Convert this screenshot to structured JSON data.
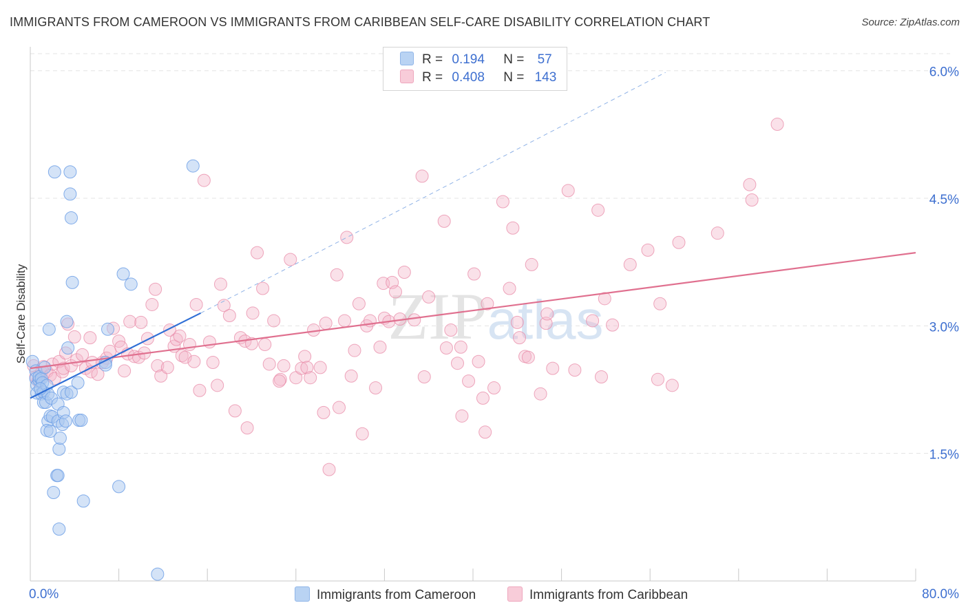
{
  "title": "IMMIGRANTS FROM CAMEROON VS IMMIGRANTS FROM CARIBBEAN SELF-CARE DISABILITY CORRELATION CHART",
  "source": "Source: ZipAtlas.com",
  "watermark": "ZIPatlas",
  "legend": {
    "rows": [
      {
        "r_label": "R =",
        "r_value": "0.194",
        "n_label": "N =",
        "n_value": "57",
        "color": "#a9c8f0"
      },
      {
        "r_label": "R =",
        "r_value": "0.408",
        "n_label": "N =",
        "n_value": "143",
        "color": "#f4b8cb"
      }
    ]
  },
  "bottom_legend": [
    {
      "label": "Immigrants from Cameroon",
      "color": "#a9c8f0"
    },
    {
      "label": "Immigrants from Caribbean",
      "color": "#f4b8cb"
    }
  ],
  "chart_data": {
    "type": "scatter",
    "title": "IMMIGRANTS FROM CAMEROON VS IMMIGRANTS FROM CARIBBEAN SELF-CARE DISABILITY CORRELATION CHART",
    "xlabel": "",
    "ylabel": "Self-Care Disability",
    "xlim": [
      0,
      80
    ],
    "ylim": [
      0,
      6.2
    ],
    "x_tick_labels": [
      "0.0%",
      "80.0%"
    ],
    "y_ticks": [
      1.5,
      3.0,
      4.5,
      6.0
    ],
    "y_tick_labels": [
      "1.5%",
      "3.0%",
      "4.5%",
      "6.0%"
    ],
    "grid": true,
    "legend_position": "top-center",
    "series": [
      {
        "name": "Immigrants from Cameroon",
        "color": "#6fa0e6",
        "fill": "#a9c8f0",
        "trend": {
          "x": [
            0,
            15.4
          ],
          "y": [
            2.15,
            3.15
          ],
          "color": "#2f6fd6"
        },
        "trend_extension": {
          "x": [
            15.4,
            57.4
          ],
          "y": [
            3.15,
            5.98
          ],
          "dashed": true
        },
        "points": [
          [
            0.2,
            2.58
          ],
          [
            0.5,
            2.47
          ],
          [
            0.5,
            2.38
          ],
          [
            0.6,
            2.3
          ],
          [
            0.6,
            2.21
          ],
          [
            0.8,
            2.36
          ],
          [
            0.8,
            2.4
          ],
          [
            1.0,
            2.38
          ],
          [
            1.0,
            2.2
          ],
          [
            1.1,
            2.33
          ],
          [
            1.2,
            2.1
          ],
          [
            1.2,
            2.22
          ],
          [
            1.3,
            2.51
          ],
          [
            1.4,
            2.1
          ],
          [
            1.5,
            2.3
          ],
          [
            1.6,
            2.2
          ],
          [
            1.6,
            1.88
          ],
          [
            1.5,
            1.77
          ],
          [
            1.7,
            2.96
          ],
          [
            1.8,
            1.94
          ],
          [
            1.8,
            1.76
          ],
          [
            1.9,
            2.15
          ],
          [
            2.0,
            1.93
          ],
          [
            2.1,
            1.04
          ],
          [
            2.4,
            1.24
          ],
          [
            2.2,
            4.81
          ],
          [
            2.5,
            1.24
          ],
          [
            2.5,
            2.08
          ],
          [
            2.5,
            1.88
          ],
          [
            2.6,
            0.61
          ],
          [
            2.6,
            1.55
          ],
          [
            2.7,
            1.68
          ],
          [
            3.0,
            2.22
          ],
          [
            2.9,
            1.84
          ],
          [
            3.0,
            1.98
          ],
          [
            3.2,
            1.88
          ],
          [
            3.3,
            3.05
          ],
          [
            3.3,
            2.2
          ],
          [
            3.4,
            2.74
          ],
          [
            3.6,
            4.81
          ],
          [
            3.6,
            4.55
          ],
          [
            3.7,
            4.27
          ],
          [
            3.7,
            2.22
          ],
          [
            3.8,
            3.51
          ],
          [
            4.3,
            2.33
          ],
          [
            4.4,
            1.89
          ],
          [
            4.6,
            1.89
          ],
          [
            4.8,
            0.94
          ],
          [
            6.8,
            2.57
          ],
          [
            6.8,
            2.54
          ],
          [
            7.0,
            2.96
          ],
          [
            8.0,
            1.11
          ],
          [
            8.4,
            3.61
          ],
          [
            9.1,
            3.49
          ],
          [
            11.5,
            0.08
          ],
          [
            14.7,
            4.88
          ],
          [
            0.9,
            2.26
          ]
        ]
      },
      {
        "name": "Immigrants from Caribbean",
        "color": "#e889a7",
        "fill": "#f4b8cb",
        "trend": {
          "x": [
            0,
            80
          ],
          "y": [
            2.5,
            3.86
          ],
          "color": "#e0708f"
        },
        "points": [
          [
            0.3,
            2.53
          ],
          [
            0.5,
            2.4
          ],
          [
            0.7,
            2.35
          ],
          [
            1.0,
            2.45
          ],
          [
            1.2,
            2.52
          ],
          [
            1.5,
            2.46
          ],
          [
            1.8,
            2.42
          ],
          [
            2.0,
            2.55
          ],
          [
            2.2,
            2.38
          ],
          [
            2.6,
            2.58
          ],
          [
            2.9,
            2.46
          ],
          [
            3.0,
            2.5
          ],
          [
            3.2,
            2.68
          ],
          [
            3.4,
            3.02
          ],
          [
            3.7,
            2.53
          ],
          [
            4.0,
            2.87
          ],
          [
            4.2,
            2.6
          ],
          [
            4.7,
            2.66
          ],
          [
            5.0,
            2.5
          ],
          [
            5.4,
            2.86
          ],
          [
            5.5,
            2.46
          ],
          [
            5.6,
            2.57
          ],
          [
            6.1,
            2.43
          ],
          [
            6.5,
            2.57
          ],
          [
            6.9,
            2.62
          ],
          [
            7.2,
            2.7
          ],
          [
            7.5,
            2.97
          ],
          [
            8.0,
            2.82
          ],
          [
            8.2,
            2.75
          ],
          [
            8.5,
            2.47
          ],
          [
            8.8,
            2.67
          ],
          [
            9.0,
            3.05
          ],
          [
            9.4,
            2.64
          ],
          [
            9.8,
            2.63
          ],
          [
            10.0,
            3.04
          ],
          [
            10.3,
            2.68
          ],
          [
            10.6,
            2.85
          ],
          [
            11.0,
            3.25
          ],
          [
            11.3,
            3.43
          ],
          [
            11.5,
            2.53
          ],
          [
            11.8,
            2.41
          ],
          [
            12.4,
            2.51
          ],
          [
            12.6,
            2.95
          ],
          [
            13.0,
            2.76
          ],
          [
            13.2,
            2.84
          ],
          [
            13.5,
            2.88
          ],
          [
            13.7,
            2.65
          ],
          [
            14.0,
            2.63
          ],
          [
            14.4,
            2.78
          ],
          [
            14.8,
            2.58
          ],
          [
            15.0,
            3.25
          ],
          [
            15.3,
            2.24
          ],
          [
            15.7,
            4.71
          ],
          [
            16.2,
            2.81
          ],
          [
            16.5,
            2.57
          ],
          [
            16.9,
            2.3
          ],
          [
            17.2,
            3.49
          ],
          [
            17.5,
            3.24
          ],
          [
            18.0,
            3.12
          ],
          [
            18.5,
            2.0
          ],
          [
            19.0,
            2.86
          ],
          [
            19.4,
            2.82
          ],
          [
            19.6,
            1.8
          ],
          [
            20.0,
            2.79
          ],
          [
            20.1,
            3.15
          ],
          [
            20.5,
            3.86
          ],
          [
            21.0,
            3.44
          ],
          [
            21.2,
            2.78
          ],
          [
            21.6,
            2.55
          ],
          [
            22.0,
            3.06
          ],
          [
            22.6,
            2.37
          ],
          [
            22.5,
            2.35
          ],
          [
            22.9,
            2.53
          ],
          [
            23.5,
            3.78
          ],
          [
            24.0,
            2.39
          ],
          [
            24.5,
            2.5
          ],
          [
            24.8,
            2.64
          ],
          [
            25.0,
            2.51
          ],
          [
            25.3,
            2.39
          ],
          [
            25.6,
            2.95
          ],
          [
            26.2,
            2.51
          ],
          [
            26.5,
            1.98
          ],
          [
            26.7,
            3.03
          ],
          [
            27.0,
            1.31
          ],
          [
            27.7,
            3.6
          ],
          [
            27.9,
            2.04
          ],
          [
            28.4,
            3.06
          ],
          [
            28.6,
            4.04
          ],
          [
            29.0,
            2.41
          ],
          [
            29.3,
            2.71
          ],
          [
            29.7,
            3.26
          ],
          [
            30.0,
            1.73
          ],
          [
            30.4,
            3.0
          ],
          [
            30.7,
            3.06
          ],
          [
            31.2,
            2.27
          ],
          [
            31.6,
            2.75
          ],
          [
            31.9,
            3.5
          ],
          [
            32.0,
            3.09
          ],
          [
            32.4,
            3.05
          ],
          [
            32.7,
            3.51
          ],
          [
            33.0,
            3.4
          ],
          [
            33.4,
            3.08
          ],
          [
            33.8,
            3.63
          ],
          [
            34.7,
            3.07
          ],
          [
            35.4,
            4.76
          ],
          [
            35.6,
            2.4
          ],
          [
            36.0,
            3.34
          ],
          [
            37.4,
            4.23
          ],
          [
            37.6,
            2.74
          ],
          [
            38.0,
            2.95
          ],
          [
            38.6,
            2.56
          ],
          [
            38.9,
            2.75
          ],
          [
            39.0,
            1.94
          ],
          [
            39.6,
            2.35
          ],
          [
            40.1,
            3.61
          ],
          [
            40.5,
            2.58
          ],
          [
            40.9,
            2.15
          ],
          [
            41.1,
            1.75
          ],
          [
            41.3,
            3.26
          ],
          [
            41.9,
            2.27
          ],
          [
            42.7,
            4.46
          ],
          [
            43.3,
            3.44
          ],
          [
            43.6,
            4.15
          ],
          [
            44.0,
            3.04
          ],
          [
            44.2,
            2.86
          ],
          [
            44.7,
            2.64
          ],
          [
            45.0,
            2.63
          ],
          [
            45.3,
            3.72
          ],
          [
            46.1,
            2.2
          ],
          [
            46.6,
            3.03
          ],
          [
            46.7,
            3.14
          ],
          [
            47.2,
            2.5
          ],
          [
            48.6,
            4.59
          ],
          [
            49.2,
            2.48
          ],
          [
            50.8,
            3.06
          ],
          [
            51.3,
            4.36
          ],
          [
            51.6,
            2.4
          ],
          [
            51.9,
            3.32
          ],
          [
            52.6,
            3.01
          ],
          [
            54.2,
            3.72
          ],
          [
            55.8,
            3.89
          ],
          [
            56.7,
            2.37
          ],
          [
            56.9,
            3.26
          ],
          [
            58.0,
            2.3
          ],
          [
            58.6,
            3.98
          ],
          [
            62.1,
            4.09
          ],
          [
            65.0,
            4.66
          ],
          [
            65.2,
            4.48
          ],
          [
            67.5,
            5.37
          ]
        ]
      }
    ]
  }
}
